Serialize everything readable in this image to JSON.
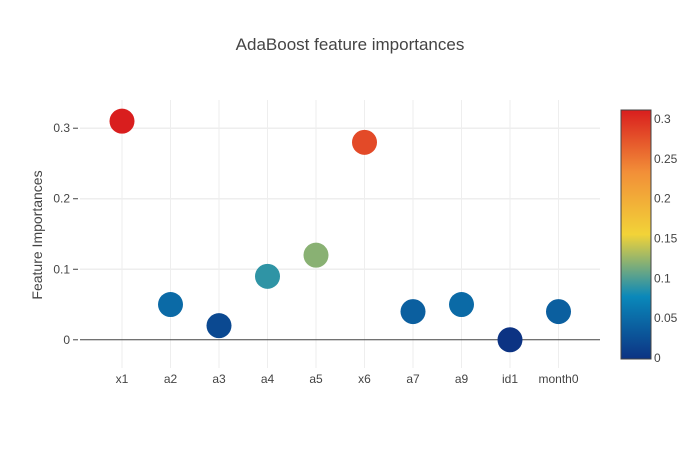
{
  "chart_data": {
    "type": "scatter",
    "title": "AdaBoost feature importances",
    "xlabel": "",
    "ylabel": "Feature Importances",
    "categories": [
      "x1",
      "a2",
      "a3",
      "a4",
      "a5",
      "x6",
      "a7",
      "a9",
      "id1",
      "month0"
    ],
    "values": [
      0.31,
      0.05,
      0.02,
      0.09,
      0.12,
      0.28,
      0.04,
      0.05,
      0.0,
      0.04
    ],
    "ylim": [
      -0.04,
      0.34
    ],
    "yticks": [
      0,
      0.1,
      0.2,
      0.3
    ],
    "ytick_labels": [
      "0",
      "0.1",
      "0.2",
      "0.3"
    ],
    "grid": true,
    "colorscale": {
      "name": "Portland",
      "range": [
        0,
        0.31
      ],
      "ticks": [
        0,
        0.05,
        0.1,
        0.15,
        0.2,
        0.25,
        0.3
      ],
      "tick_labels": [
        "0",
        "0.05",
        "0.1",
        "0.15",
        "0.2",
        "0.25",
        "0.3"
      ],
      "stops": [
        [
          0.0,
          "#0c3383"
        ],
        [
          0.25,
          "#0a88ba"
        ],
        [
          0.5,
          "#f2d338"
        ],
        [
          0.75,
          "#f28f38"
        ],
        [
          1.0,
          "#d91e1e"
        ]
      ]
    },
    "colorbar_position": "right"
  }
}
